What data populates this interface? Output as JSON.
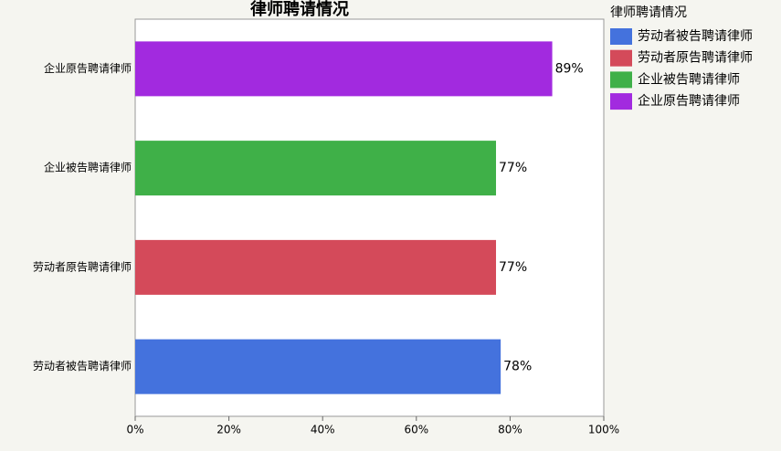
{
  "chart_data": {
    "type": "bar",
    "orientation": "horizontal",
    "title": "律师聘请情况",
    "categories": [
      "劳动者被告聘请律师",
      "劳动者原告聘请律师",
      "企业被告聘请律师",
      "企业原告聘请律师"
    ],
    "values": [
      78,
      77,
      77,
      89
    ],
    "value_labels": [
      "78%",
      "77%",
      "77%",
      "89%"
    ],
    "colors": [
      "#4472dd",
      "#d44a5a",
      "#3fb048",
      "#a22adf"
    ],
    "legend_title": "律师聘请情况",
    "legend": "right",
    "xlim": [
      0,
      100
    ],
    "xticks": [
      {
        "value": 0,
        "label": "0%"
      },
      {
        "value": 20,
        "label": "20%"
      },
      {
        "value": 40,
        "label": "40%"
      },
      {
        "value": 60,
        "label": "60%"
      },
      {
        "value": 80,
        "label": "80%"
      },
      {
        "value": 100,
        "label": "100%"
      }
    ]
  }
}
